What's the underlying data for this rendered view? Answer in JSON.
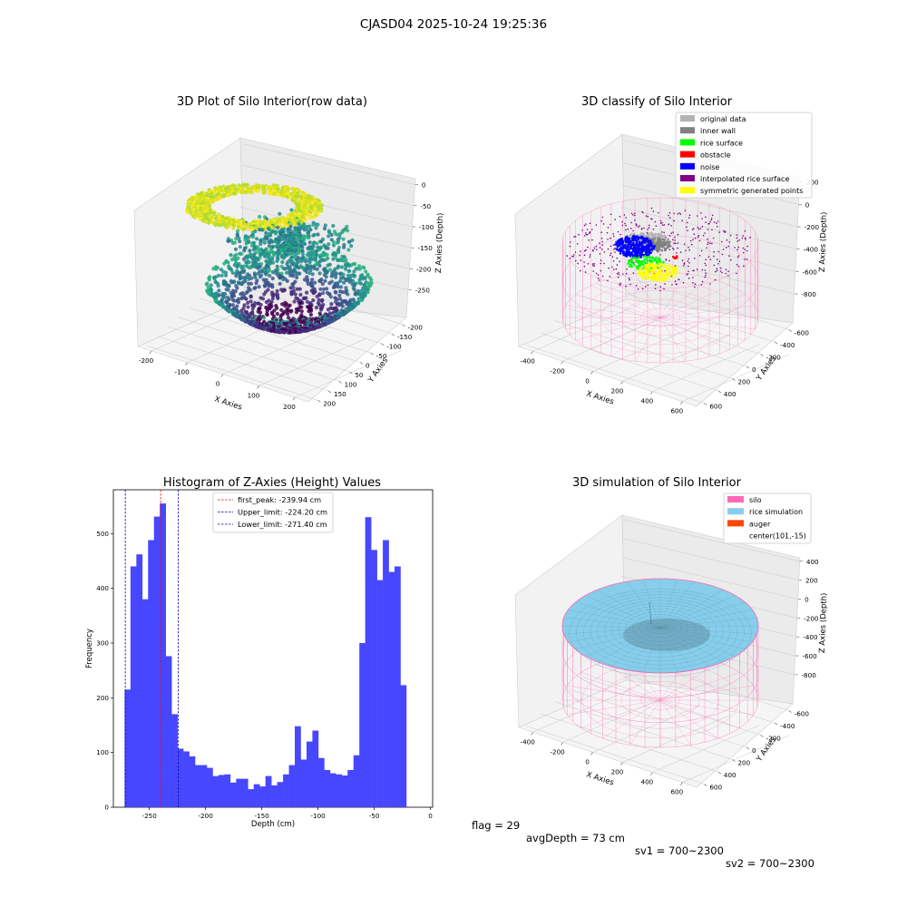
{
  "suptitle": "CJASD04 2025-10-24 19:25:36",
  "chart_data": [
    {
      "type": "scatter",
      "title": "3D Plot of Silo Interior(row data)",
      "xlabel": "X Axies",
      "ylabel": "Y Axies",
      "zlabel": "Z Axies (Depth)",
      "x_ticks": [
        -200,
        -100,
        0,
        100,
        200
      ],
      "y_ticks": [
        200,
        150,
        100,
        50,
        0,
        -50,
        -100,
        -150,
        -200
      ],
      "z_ticks": [
        0,
        -50,
        -100,
        -150,
        -200,
        -250
      ],
      "colormap": "viridis"
    },
    {
      "type": "scatter",
      "title": "3D classify of Silo Interior",
      "xlabel": "X Axies",
      "ylabel": "Y Axies",
      "zlabel": "Z Axies (Depth)",
      "x_ticks": [
        -400,
        -200,
        0,
        200,
        400,
        600
      ],
      "y_ticks": [
        600,
        400,
        200,
        0,
        -200,
        -400,
        -600
      ],
      "z_ticks": [
        200,
        0,
        -200,
        -400,
        -600,
        -800
      ],
      "legend": [
        {
          "label": "original data",
          "color": "#b3b3b3"
        },
        {
          "label": "inner wall",
          "color": "#808080"
        },
        {
          "label": "rice surface",
          "color": "#00ff00"
        },
        {
          "label": "obstacle",
          "color": "#ff0000"
        },
        {
          "label": "noise",
          "color": "#0000ff"
        },
        {
          "label": "interpolated rice surface",
          "color": "#800080"
        },
        {
          "label": "symmetric generated points",
          "color": "#ffff00"
        }
      ],
      "legend_position": "top-right"
    },
    {
      "type": "bar",
      "title": "Histogram of Z-Axies (Height) Values",
      "xlabel": "Depth (cm)",
      "ylabel": "Frequency",
      "xlim": [
        -282,
        2
      ],
      "ylim": [
        0,
        580
      ],
      "x_ticks": [
        -250,
        -200,
        -150,
        -100,
        -50,
        0
      ],
      "y_ticks": [
        0,
        100,
        200,
        300,
        400,
        500
      ],
      "bar_color": "#4747ff",
      "bin_width": 5.22,
      "bin_start": -272,
      "values": [
        215,
        440,
        462,
        380,
        488,
        531,
        555,
        276,
        170,
        107,
        102,
        93,
        77,
        77,
        72,
        57,
        59,
        60,
        45,
        52,
        52,
        33,
        42,
        38,
        57,
        40,
        46,
        60,
        77,
        148,
        87,
        120,
        140,
        90,
        68,
        62,
        60,
        58,
        68,
        95,
        300,
        530,
        470,
        415,
        488,
        430,
        440,
        223
      ],
      "vlines": [
        {
          "label": "first_peak: -239.94 cm",
          "x": -239.94,
          "color": "#ff0000"
        },
        {
          "label": "Upper_limit: -224.20 cm",
          "x": -224.2,
          "color": "#0000aa"
        },
        {
          "label": "Lower_limit: -271.40 cm",
          "x": -271.4,
          "color": "#0000aa"
        }
      ],
      "legend_position": "top-center"
    },
    {
      "type": "surface",
      "title": "3D simulation of Silo Interior",
      "xlabel": "X Axies",
      "ylabel": "Y Axies",
      "zlabel": "Z Axies (Depth)",
      "x_ticks": [
        -400,
        -200,
        0,
        200,
        400,
        600
      ],
      "y_ticks": [
        600,
        400,
        200,
        0,
        -200,
        -400,
        -600
      ],
      "z_ticks": [
        400,
        200,
        0,
        -200,
        -400,
        -600,
        -800
      ],
      "legend": [
        {
          "label": "silo",
          "color": "#ff69b4"
        },
        {
          "label": "rice simulation",
          "color": "#87ceeb"
        },
        {
          "label": "auger",
          "color": "#ff4500"
        },
        {
          "label": "center(101,-15)",
          "color": ""
        }
      ],
      "legend_position": "top-right"
    }
  ],
  "footer": {
    "flag": "flag = 29",
    "avg_depth": "avgDepth = 73 cm",
    "sv1": "sv1 = 700~2300",
    "sv2": "sv2 = 700~2300"
  }
}
